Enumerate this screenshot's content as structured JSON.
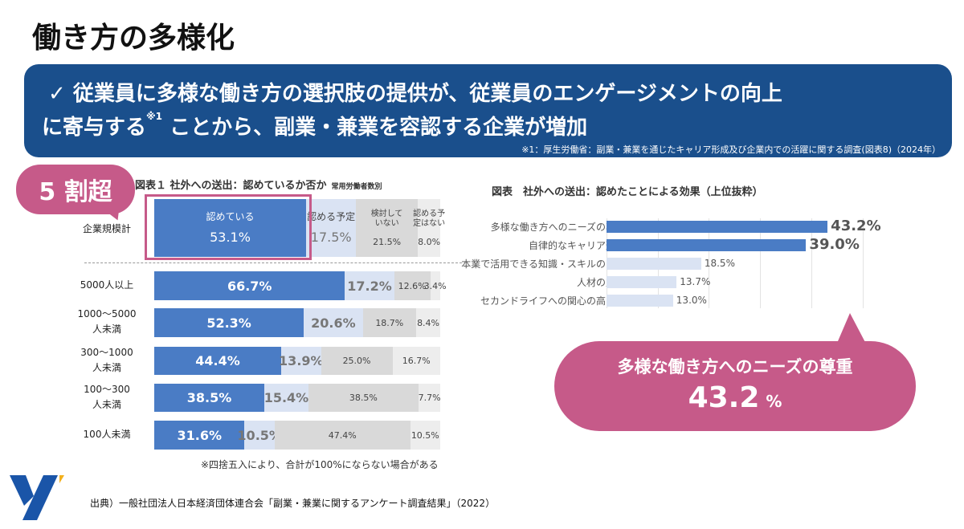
{
  "title": "働き方の多様化",
  "banner": {
    "check": "✓",
    "line1": "従業員に多様な働き方の選択肢の提供が、従業員のエンゲージメントの向上",
    "line2a": "に寄与する",
    "sup": "※1",
    "line2b": "ことから、副業・兼業を容認する企業が増加",
    "note": "※1：厚生労働省：副業・兼業を通じたキャリア形成及び企業内での活躍に関する調査(図表8)（2024年）"
  },
  "badge": "5 割超",
  "bubble": {
    "text": "多様な働き方へのニーズの尊重",
    "value": "43.2",
    "unit": "%"
  },
  "source": "出典）一般社団法人日本経済団体連合会「副業・兼業に関するアンケート調査結果」（2022）",
  "colors": {
    "navy": "#1a4f8c",
    "pink": "#c65a89",
    "blue": "#4a7cc5",
    "lightblue": "#dae3f3",
    "gray": "#d9d9d9",
    "lightgray": "#ededed"
  },
  "chart_data": [
    {
      "type": "bar",
      "stacked": true,
      "orientation": "horizontal",
      "title": "図表１ 社外への送出：認めているか否か",
      "subtitle": "常用労働者数別",
      "series_names": [
        "認めている",
        "認める予定",
        "検討していない",
        "認める予定はない"
      ],
      "categories": [
        "企業規模計",
        "5000人以上",
        "1000～5000人未満",
        "300～1000人未満",
        "100～300人未満",
        "100人未満"
      ],
      "values": [
        [
          53.1,
          17.5,
          21.5,
          8.0
        ],
        [
          66.7,
          17.2,
          12.6,
          3.4
        ],
        [
          52.3,
          20.6,
          18.7,
          8.4
        ],
        [
          44.4,
          13.9,
          25.0,
          16.7
        ],
        [
          38.5,
          15.4,
          38.5,
          7.7
        ],
        [
          31.6,
          10.5,
          47.4,
          10.5
        ]
      ],
      "note": "※四捨五入により、合計が100%にならない場合がある"
    },
    {
      "type": "bar",
      "orientation": "horizontal",
      "title": "図表　社外への送出：認めたことによる効果（上位抜粋）",
      "categories": [
        "多様な働き方へのニーズの尊重",
        "自律的なキャリア形成",
        "本業で活用できる知識・スキルの習得",
        "人材の定着",
        "セカンドライフへの関心の高まり"
      ],
      "values": [
        43.2,
        39.0,
        18.5,
        13.7,
        13.0
      ],
      "xlim": [
        0,
        50
      ]
    }
  ]
}
